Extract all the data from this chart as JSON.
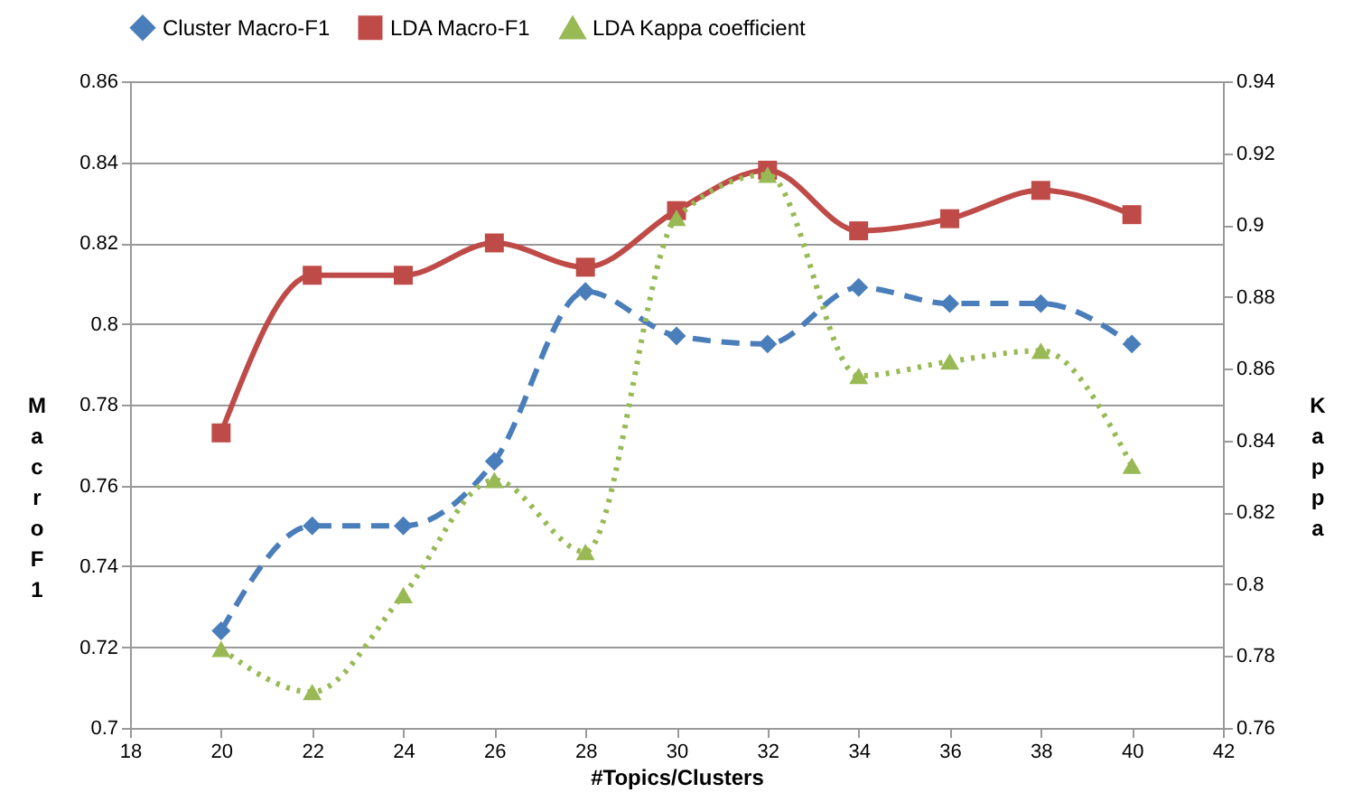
{
  "chart_data": {
    "type": "line",
    "xlabel": "#Topics/Clusters",
    "ylabel": "Macro F1",
    "y2label": "Kappa",
    "x": [
      20,
      22,
      24,
      26,
      28,
      30,
      32,
      34,
      36,
      38,
      40
    ],
    "xlim": [
      18,
      42
    ],
    "xticks": [
      18,
      20,
      22,
      24,
      26,
      28,
      30,
      32,
      34,
      36,
      38,
      40,
      42
    ],
    "ylim": [
      0.7,
      0.86
    ],
    "yticks": [
      0.7,
      0.72,
      0.74,
      0.76,
      0.78,
      0.8,
      0.82,
      0.84,
      0.86
    ],
    "y2lim": [
      0.76,
      0.94
    ],
    "y2ticks": [
      0.76,
      0.78,
      0.8,
      0.82,
      0.84,
      0.86,
      0.88,
      0.9,
      0.92,
      0.94
    ],
    "grid": "y",
    "legend": "top",
    "series": [
      {
        "name": "Cluster Macro-F1",
        "color": "#4a7ebb",
        "marker": "diamond",
        "line_style": "dashed",
        "values": [
          0.724,
          0.75,
          0.75,
          0.766,
          0.808,
          0.797,
          0.795,
          0.809,
          0.805,
          0.805,
          0.795
        ]
      },
      {
        "name": "LDA Macro-F1",
        "color": "#be4b48",
        "marker": "square",
        "line_style": "solid",
        "values": [
          0.773,
          0.812,
          0.812,
          0.82,
          0.814,
          0.828,
          0.838,
          0.823,
          0.826,
          0.833,
          0.827
        ]
      },
      {
        "name": "LDA Kappa coefficient",
        "color": "#98b954",
        "marker": "triangle",
        "line_style": "dotted",
        "axis": "y2",
        "values": [
          0.782,
          0.77,
          0.797,
          0.829,
          0.809,
          0.902,
          0.914,
          0.858,
          0.862,
          0.865,
          0.833
        ]
      }
    ]
  }
}
